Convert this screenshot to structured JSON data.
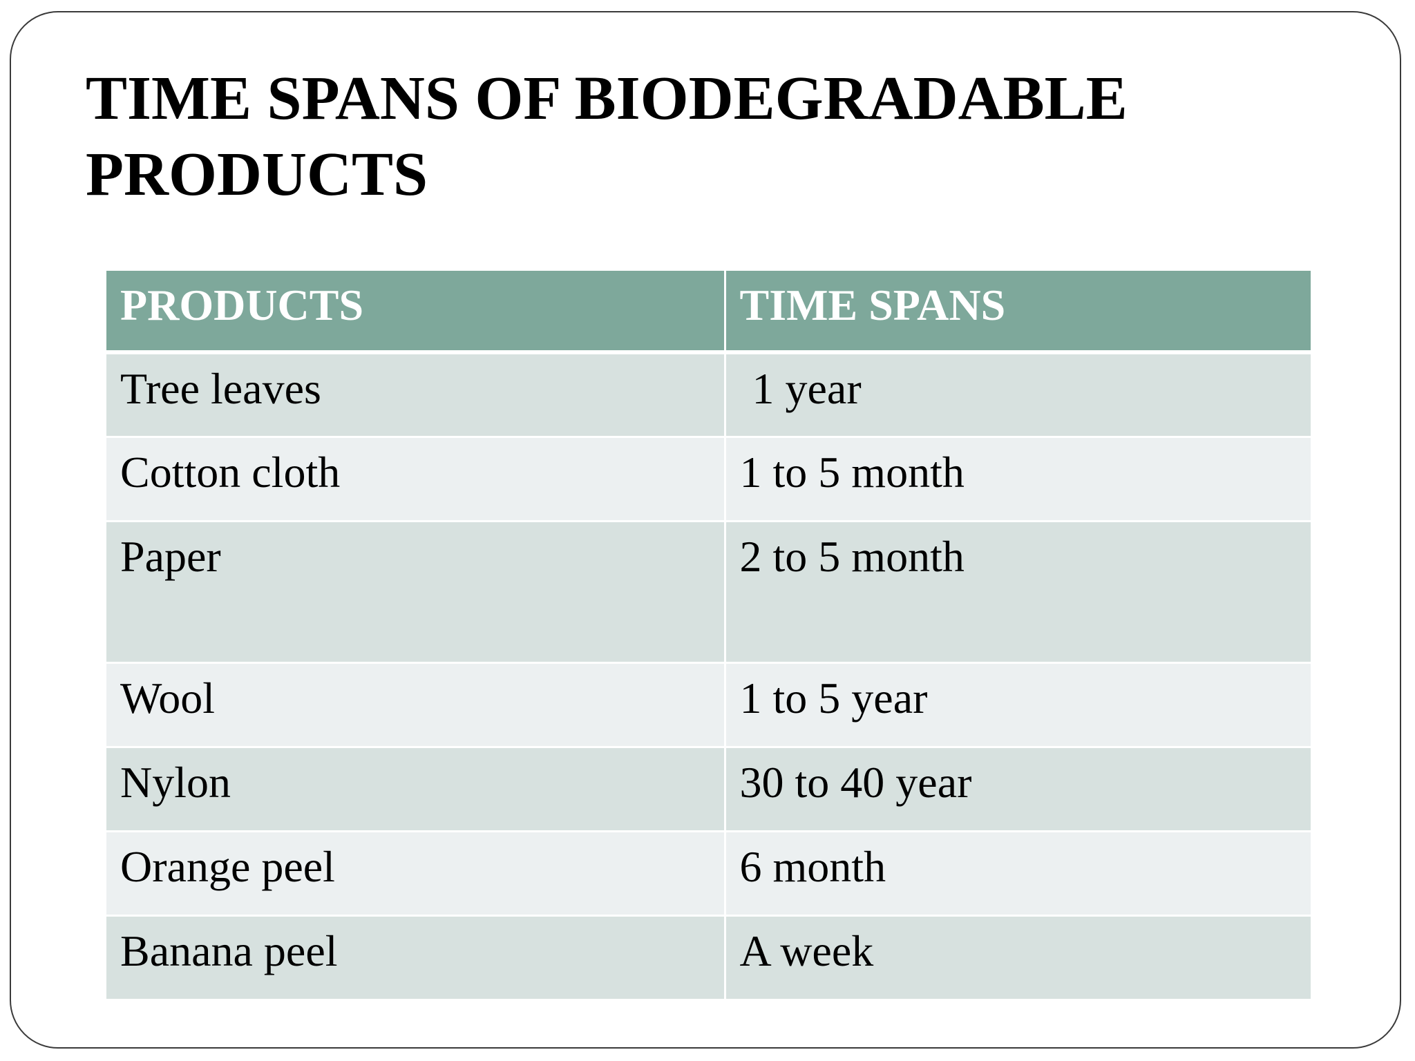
{
  "title": "TIME SPANS OF BIODEGRADABLE PRODUCTS",
  "table": {
    "headers": [
      "PRODUCTS",
      "TIME SPANS"
    ],
    "rows": [
      {
        "product": "Tree leaves",
        "span": "1 year"
      },
      {
        "product": "Cotton cloth",
        "span": "1 to 5 month"
      },
      {
        "product": "Paper",
        "span": "2 to 5 month"
      },
      {
        "product": "Wool",
        "span": "1 to 5 year"
      },
      {
        "product": "Nylon",
        "span": "30 to 40 year"
      },
      {
        "product": "Orange peel",
        "span": "6 month"
      },
      {
        "product": "Banana peel",
        "span": "A week"
      }
    ]
  },
  "colors": {
    "header_bg": "#7ea89b",
    "row_dark": "#d7e1df",
    "row_light": "#ecf0f1"
  }
}
